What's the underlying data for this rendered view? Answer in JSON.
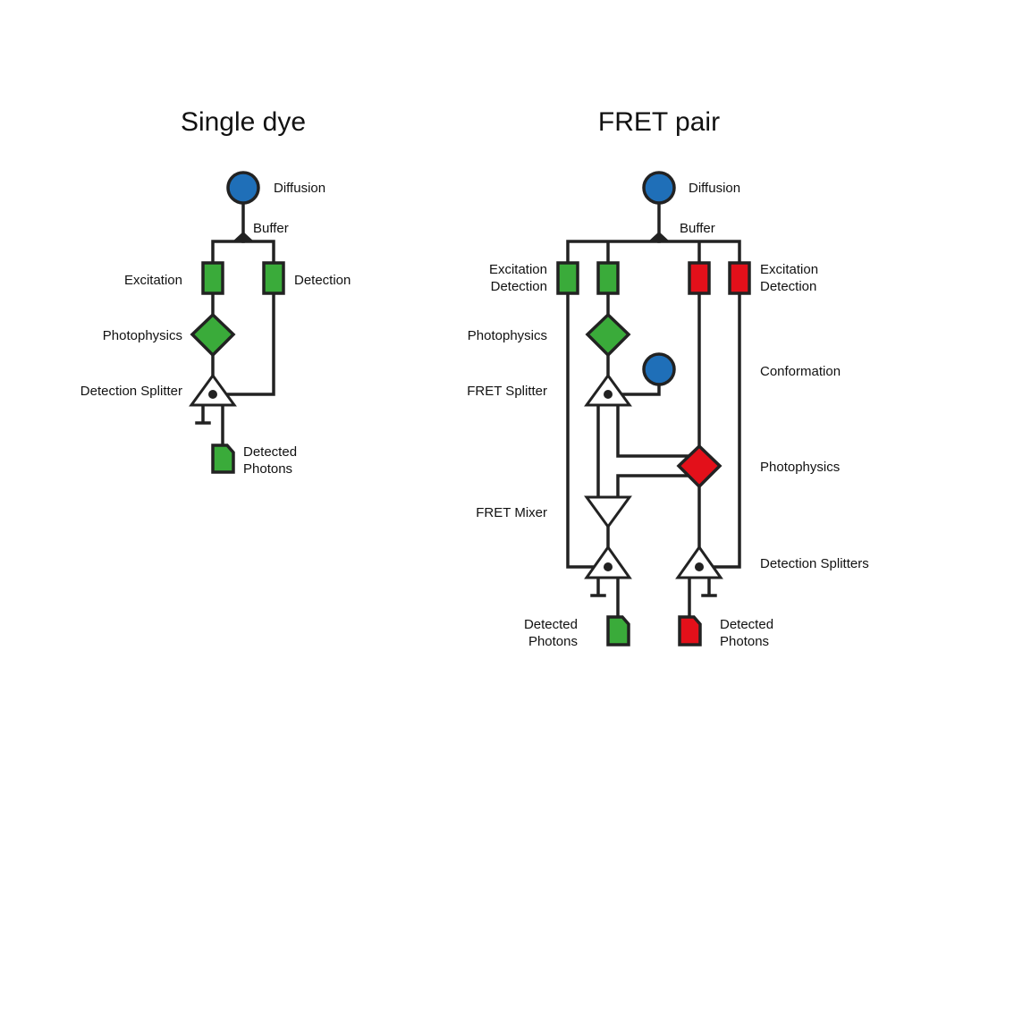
{
  "single_dye": {
    "title": "Single dye",
    "labels": {
      "diffusion": "Diffusion",
      "buffer": "Buffer",
      "excitation": "Excitation",
      "detection": "Detection",
      "photophysics": "Photophysics",
      "detection_splitter": "Detection Splitter",
      "detected_1": "Detected",
      "detected_2": "Photons"
    }
  },
  "fret_pair": {
    "title": "FRET pair",
    "labels": {
      "diffusion": "Diffusion",
      "buffer": "Buffer",
      "exc_det_left_1": "Excitation",
      "exc_det_left_2": "Detection",
      "exc_det_right_1": "Excitation",
      "exc_det_right_2": "Detection",
      "photophysics_left": "Photophysics",
      "conformation": "Conformation",
      "fret_splitter": "FRET Splitter",
      "photophysics_right": "Photophysics",
      "fret_mixer": "FRET Mixer",
      "detection_splitters": "Detection Splitters",
      "detected_left_1": "Detected",
      "detected_left_2": "Photons",
      "detected_right_1": "Detected",
      "detected_right_2": "Photons"
    }
  },
  "colors": {
    "blue": "#1f6fb8",
    "green": "#3aab3a",
    "red": "#e3101a",
    "line": "#222222"
  }
}
